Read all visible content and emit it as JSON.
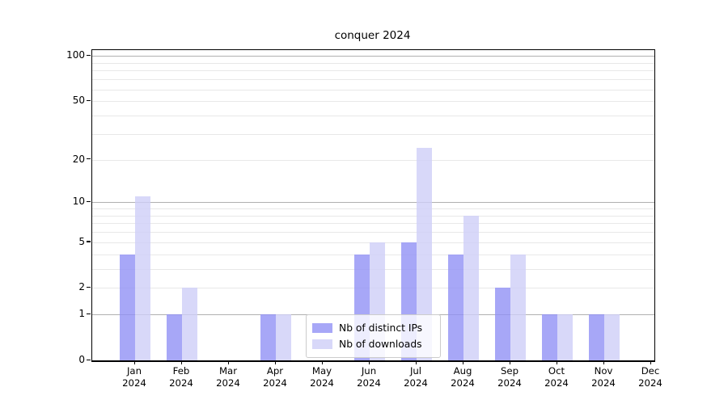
{
  "title": "conquer 2024",
  "chart_data": {
    "type": "bar",
    "title": "conquer 2024",
    "categories": [
      "Jan 2024",
      "Feb 2024",
      "Mar 2024",
      "Apr 2024",
      "May 2024",
      "Jun 2024",
      "Jul 2024",
      "Aug 2024",
      "Sep 2024",
      "Oct 2024",
      "Nov 2024",
      "Dec 2024"
    ],
    "series": [
      {
        "name": "Nb of distinct IPs",
        "color": "#a7a7f7",
        "values": [
          4,
          1,
          0,
          1,
          0,
          4,
          5,
          4,
          2,
          1,
          1,
          0
        ]
      },
      {
        "name": "Nb of downloads",
        "color": "#d8d8f9",
        "values": [
          11,
          2,
          0,
          1,
          0,
          5,
          24,
          8,
          4,
          1,
          1,
          0
        ]
      }
    ],
    "bar_opacity": 0.8,
    "xlabel": "",
    "ylabel": "",
    "yscale": "log1p",
    "ylim": [
      0,
      110
    ],
    "yticks": [
      0,
      1,
      2,
      5,
      10,
      20,
      50,
      100
    ],
    "major_gridlines": [
      1,
      10,
      100
    ],
    "minor_gridlines": [
      2,
      3,
      4,
      5,
      6,
      7,
      8,
      9,
      20,
      30,
      40,
      50,
      60,
      70,
      80,
      90
    ],
    "grid": "horizontal",
    "legend_position": "inside-lower-center"
  },
  "colors": {
    "major_grid": "#b0b0b0",
    "minor_grid": "#e8e8e8",
    "spine": "#000000",
    "legend_border": "#cccccc"
  }
}
